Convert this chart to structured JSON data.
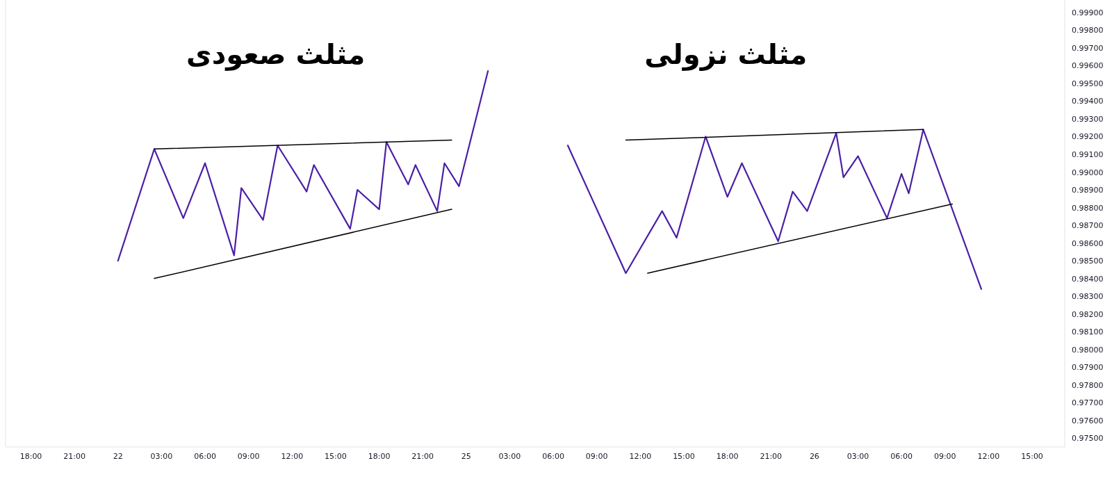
{
  "chart_data": {
    "type": "line",
    "ylim": [
      0.9745,
      0.9997
    ],
    "categories": [
      null,
      null,
      null,
      "18:00",
      null,
      null,
      null,
      null,
      null,
      "21:00",
      null,
      null,
      null,
      null,
      null,
      "22",
      null,
      null,
      null,
      null,
      null,
      "03:00",
      null,
      null,
      null,
      null,
      null,
      "06:00",
      null,
      null,
      null,
      null,
      null,
      "09:00",
      null,
      null,
      null,
      null,
      null,
      "12:00",
      null,
      null,
      null,
      null,
      null,
      "15:00",
      null,
      null,
      null,
      null,
      null,
      "18:00",
      null,
      null,
      null,
      null,
      null,
      "21:00",
      null,
      null,
      null,
      null,
      null,
      "25",
      null,
      null,
      null,
      null,
      null,
      "03:00",
      null,
      null,
      null,
      null,
      null,
      "06:00",
      null,
      null,
      null,
      null,
      null,
      "09:00",
      null,
      null,
      null,
      null,
      null,
      "12:00",
      null,
      null,
      null,
      null,
      null,
      "15:00",
      null,
      null,
      null,
      null,
      null,
      "18:00",
      null,
      null,
      null,
      null,
      null,
      "21:00",
      null,
      null,
      null,
      null,
      null,
      "26",
      null,
      null,
      null,
      null,
      null,
      "03:00",
      null,
      null,
      null,
      null,
      null,
      "06:00",
      null,
      null,
      null,
      null,
      null,
      "09:00",
      null,
      null,
      null,
      null,
      null,
      "12:00",
      null,
      null,
      null,
      null,
      null,
      "15:00",
      null,
      null,
      null,
      null
    ],
    "yticks": [
      {
        "value": 0.999,
        "label": "0.99900"
      },
      {
        "value": 0.998,
        "label": "0.99800"
      },
      {
        "value": 0.997,
        "label": "0.99700"
      },
      {
        "value": 0.996,
        "label": "0.99600"
      },
      {
        "value": 0.995,
        "label": "0.99500"
      },
      {
        "value": 0.994,
        "label": "0.99400"
      },
      {
        "value": 0.993,
        "label": "0.99300"
      },
      {
        "value": 0.992,
        "label": "0.99200"
      },
      {
        "value": 0.991,
        "label": "0.99100"
      },
      {
        "value": 0.99,
        "label": "0.99000"
      },
      {
        "value": 0.989,
        "label": "0.98900"
      },
      {
        "value": 0.988,
        "label": "0.98800"
      },
      {
        "value": 0.987,
        "label": "0.98700"
      },
      {
        "value": 0.986,
        "label": "0.98600"
      },
      {
        "value": 0.985,
        "label": "0.98500"
      },
      {
        "value": 0.984,
        "label": "0.98400"
      },
      {
        "value": 0.983,
        "label": "0.98300"
      },
      {
        "value": 0.982,
        "label": "0.98200"
      },
      {
        "value": 0.981,
        "label": "0.98100"
      },
      {
        "value": 0.98,
        "label": "0.98000"
      },
      {
        "value": 0.979,
        "label": "0.97900"
      },
      {
        "value": 0.978,
        "label": "0.97800"
      },
      {
        "value": 0.977,
        "label": "0.97700"
      },
      {
        "value": 0.976,
        "label": "0.97600"
      },
      {
        "value": 0.975,
        "label": "0.97500"
      }
    ],
    "series": [
      {
        "color": "#4b1fa6",
        "values": [
          null,
          null,
          null,
          null,
          null,
          null,
          null,
          null,
          null,
          null,
          null,
          null,
          null,
          null,
          null,
          0.985,
          null,
          null,
          null,
          null,
          0.9913,
          null,
          null,
          null,
          0.9874,
          null,
          null,
          0.9905,
          null,
          null,
          null,
          0.9853,
          0.9891,
          null,
          null,
          0.9873,
          null,
          0.9915,
          null,
          null,
          null,
          0.9889,
          0.9904,
          null,
          null,
          null,
          null,
          0.9868,
          0.989,
          null,
          null,
          0.9879,
          0.9917,
          null,
          null,
          0.9893,
          0.9904,
          null,
          null,
          0.9878,
          0.9905,
          null,
          0.9892,
          null,
          null,
          null,
          0.9957,
          null,
          null,
          null,
          null,
          null,
          null,
          null,
          null,
          null,
          null,
          null,
          null,
          null,
          null,
          null,
          null,
          null,
          null,
          null,
          null,
          null,
          null,
          null,
          null,
          null,
          null,
          null,
          null,
          null,
          null,
          null,
          null,
          null,
          null,
          null,
          null,
          null,
          null,
          null,
          null,
          null,
          null,
          null,
          null,
          null,
          null,
          null,
          null,
          null,
          null,
          null,
          null,
          null,
          null,
          null,
          null,
          null,
          null,
          null,
          null,
          null,
          null,
          null,
          null,
          null,
          null,
          null,
          null,
          null,
          null,
          null,
          null,
          null,
          null,
          null,
          null,
          null,
          null,
          null
        ]
      },
      {
        "color": "#4b1fa6",
        "values": [
          null,
          null,
          null,
          null,
          null,
          null,
          null,
          null,
          null,
          null,
          null,
          null,
          null,
          null,
          null,
          null,
          null,
          null,
          null,
          null,
          null,
          null,
          null,
          null,
          null,
          null,
          null,
          null,
          null,
          null,
          null,
          null,
          null,
          null,
          null,
          null,
          null,
          null,
          null,
          null,
          null,
          null,
          null,
          null,
          null,
          null,
          null,
          null,
          null,
          null,
          null,
          null,
          null,
          null,
          null,
          null,
          null,
          null,
          null,
          null,
          null,
          null,
          null,
          null,
          null,
          null,
          null,
          null,
          null,
          null,
          null,
          null,
          null,
          null,
          null,
          null,
          null,
          0.9915,
          null,
          null,
          null,
          null,
          null,
          null,
          null,
          0.9843,
          null,
          null,
          null,
          null,
          0.9878,
          null,
          0.9863,
          null,
          null,
          null,
          0.992,
          null,
          null,
          0.9886,
          null,
          0.9905,
          null,
          null,
          null,
          null,
          0.9861,
          null,
          0.9889,
          null,
          0.9878,
          null,
          null,
          null,
          0.9922,
          0.9897,
          null,
          0.9909,
          null,
          null,
          null,
          0.9874,
          null,
          0.9899,
          0.9888,
          null,
          0.9924,
          null,
          null,
          null,
          null,
          null,
          null,
          null,
          0.9834,
          null,
          null,
          null,
          null,
          null,
          null,
          null,
          null,
          null,
          null,
          null
        ]
      },
      {
        "color": "#000000",
        "values": [
          null,
          null,
          null,
          null,
          null,
          null,
          null,
          null,
          null,
          null,
          null,
          null,
          null,
          null,
          null,
          null,
          null,
          null,
          null,
          null,
          0.9913,
          null,
          null,
          null,
          null,
          null,
          null,
          null,
          null,
          null,
          null,
          null,
          null,
          null,
          null,
          null,
          null,
          null,
          null,
          null,
          null,
          null,
          null,
          null,
          null,
          null,
          null,
          null,
          null,
          null,
          null,
          null,
          null,
          null,
          null,
          null,
          null,
          null,
          null,
          null,
          null,
          0.9918,
          null,
          null,
          null,
          null,
          null,
          null,
          null,
          null,
          null,
          null,
          null,
          null,
          null,
          null,
          null,
          null,
          null,
          null,
          null,
          null,
          null,
          null,
          null,
          null,
          null,
          null,
          null,
          null,
          null,
          null,
          null,
          null,
          null,
          null,
          null,
          null,
          null,
          null,
          null,
          null,
          null,
          null,
          null,
          null,
          null,
          null,
          null,
          null,
          null,
          null,
          null,
          null,
          null,
          null,
          null,
          null,
          null,
          null,
          null,
          null,
          null,
          null,
          null,
          null,
          null,
          null,
          null,
          null,
          null,
          null,
          null,
          null,
          null,
          null,
          null,
          null,
          null,
          null,
          null,
          null,
          null,
          null,
          null,
          null
        ]
      },
      {
        "color": "#000000",
        "values": [
          null,
          null,
          null,
          null,
          null,
          null,
          null,
          null,
          null,
          null,
          null,
          null,
          null,
          null,
          null,
          null,
          null,
          null,
          null,
          null,
          0.984,
          null,
          null,
          null,
          null,
          null,
          null,
          null,
          null,
          null,
          null,
          null,
          null,
          null,
          null,
          null,
          null,
          null,
          null,
          null,
          null,
          null,
          null,
          null,
          null,
          null,
          null,
          null,
          null,
          null,
          null,
          null,
          null,
          null,
          null,
          null,
          null,
          null,
          null,
          null,
          null,
          0.9879,
          null,
          null,
          null,
          null,
          null,
          null,
          null,
          null,
          null,
          null,
          null,
          null,
          null,
          null,
          null,
          null,
          null,
          null,
          null,
          null,
          null,
          null,
          null,
          null,
          null,
          null,
          null,
          null,
          null,
          null,
          null,
          null,
          null,
          null,
          null,
          null,
          null,
          null,
          null,
          null,
          null,
          null,
          null,
          null,
          null,
          null,
          null,
          null,
          null,
          null,
          null,
          null,
          null,
          null,
          null,
          null,
          null,
          null,
          null,
          null,
          null,
          null,
          null,
          null,
          null,
          null,
          null,
          null,
          null,
          null,
          null,
          null,
          null,
          null,
          null,
          null,
          null,
          null,
          null,
          null,
          null,
          null,
          null,
          null
        ]
      },
      {
        "color": "#000000",
        "values": [
          null,
          null,
          null,
          null,
          null,
          null,
          null,
          null,
          null,
          null,
          null,
          null,
          null,
          null,
          null,
          null,
          null,
          null,
          null,
          null,
          null,
          null,
          null,
          null,
          null,
          null,
          null,
          null,
          null,
          null,
          null,
          null,
          null,
          null,
          null,
          null,
          null,
          null,
          null,
          null,
          null,
          null,
          null,
          null,
          null,
          null,
          null,
          null,
          null,
          null,
          null,
          null,
          null,
          null,
          null,
          null,
          null,
          null,
          null,
          null,
          null,
          null,
          null,
          null,
          null,
          null,
          null,
          null,
          null,
          null,
          null,
          null,
          null,
          null,
          null,
          null,
          null,
          null,
          null,
          null,
          null,
          null,
          null,
          null,
          null,
          0.9918,
          null,
          null,
          null,
          null,
          null,
          null,
          null,
          null,
          null,
          null,
          null,
          null,
          null,
          null,
          null,
          null,
          null,
          null,
          null,
          null,
          null,
          null,
          null,
          null,
          null,
          null,
          null,
          null,
          null,
          null,
          null,
          null,
          null,
          null,
          null,
          null,
          null,
          null,
          null,
          null,
          0.9924,
          null,
          null,
          null,
          null,
          null,
          null,
          null,
          null,
          null,
          null,
          null,
          null,
          null,
          null,
          null,
          null,
          null,
          null,
          null
        ]
      },
      {
        "color": "#000000",
        "values": [
          null,
          null,
          null,
          null,
          null,
          null,
          null,
          null,
          null,
          null,
          null,
          null,
          null,
          null,
          null,
          null,
          null,
          null,
          null,
          null,
          null,
          null,
          null,
          null,
          null,
          null,
          null,
          null,
          null,
          null,
          null,
          null,
          null,
          null,
          null,
          null,
          null,
          null,
          null,
          null,
          null,
          null,
          null,
          null,
          null,
          null,
          null,
          null,
          null,
          null,
          null,
          null,
          null,
          null,
          null,
          null,
          null,
          null,
          null,
          null,
          null,
          null,
          null,
          null,
          null,
          null,
          null,
          null,
          null,
          null,
          null,
          null,
          null,
          null,
          null,
          null,
          null,
          null,
          null,
          null,
          null,
          null,
          null,
          null,
          null,
          null,
          null,
          null,
          0.9843,
          null,
          null,
          null,
          null,
          null,
          null,
          null,
          null,
          null,
          null,
          null,
          null,
          null,
          null,
          null,
          null,
          null,
          null,
          null,
          null,
          null,
          null,
          null,
          null,
          null,
          null,
          null,
          null,
          null,
          null,
          null,
          null,
          null,
          null,
          null,
          null,
          null,
          null,
          null,
          null,
          null,
          0.9882,
          null,
          null,
          null,
          null,
          null,
          null,
          null,
          null,
          null,
          null,
          null,
          null,
          null,
          null,
          null
        ]
      }
    ],
    "annotations": [
      "مثلث صعودی",
      "مثلث نزولی"
    ]
  }
}
